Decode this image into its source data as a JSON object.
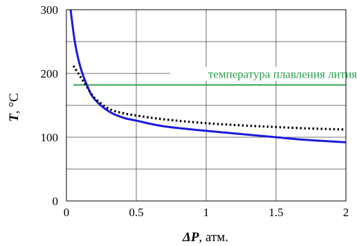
{
  "chart_data": {
    "type": "line",
    "title": "",
    "xlabel": {
      "symbol": "ΔP",
      "unit": "атм."
    },
    "ylabel": {
      "symbol": "T",
      "unit": "°C"
    },
    "xlim": [
      0,
      2
    ],
    "ylim": [
      0,
      300
    ],
    "x_ticks": [
      0,
      0.5,
      1,
      1.5,
      2
    ],
    "x_tick_labels": [
      "0",
      "0.5",
      "1",
      "1.5",
      "2"
    ],
    "y_ticks": [
      0,
      100,
      200,
      300
    ],
    "y_tick_labels": [
      "0",
      "100",
      "200",
      "300"
    ],
    "x_grid": [
      0.5,
      1,
      1.5
    ],
    "y_grid": [
      50,
      100,
      150,
      200,
      250
    ],
    "grid": true,
    "series": [
      {
        "style": "solid",
        "color": "#1a1adc",
        "x": [
          0.03,
          0.06,
          0.1,
          0.15,
          0.2,
          0.3,
          0.4,
          0.5,
          0.7,
          1.0,
          1.3,
          1.5,
          1.7,
          2.0
        ],
        "y": [
          300,
          250,
          210,
          180,
          160,
          141,
          131,
          126,
          117,
          110,
          104,
          100,
          96,
          92
        ]
      },
      {
        "style": "dotted",
        "color": "#000000",
        "x": [
          0.05,
          0.1,
          0.15,
          0.2,
          0.3,
          0.4,
          0.5,
          0.7,
          1.0,
          1.3,
          1.5,
          1.7,
          2.0
        ],
        "y": [
          212,
          195,
          178,
          162,
          145,
          138,
          134,
          128,
          122,
          118,
          116,
          114,
          112
        ]
      }
    ],
    "reference_lines": [
      {
        "y": 182,
        "x_start": 0.05,
        "x_end": 2.0,
        "color": "#2a9d4a",
        "label": "температура плавления лития"
      }
    ]
  }
}
